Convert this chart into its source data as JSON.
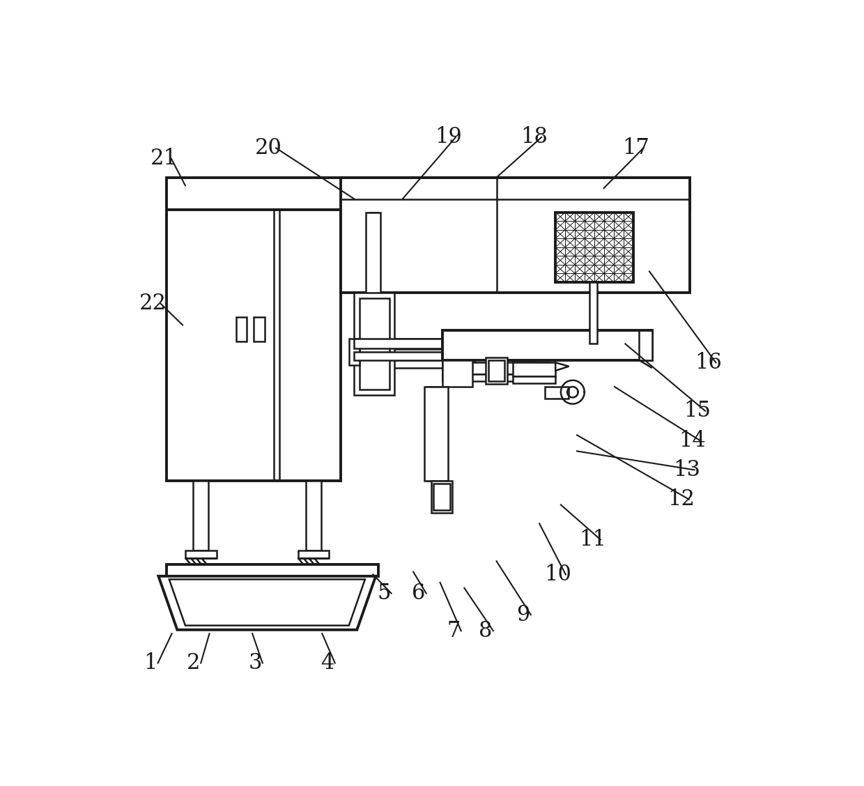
{
  "bg_color": "#ffffff",
  "line_color": "#1a1a1a",
  "lw": 1.8,
  "tlw": 2.8,
  "fs": 22,
  "label_data": [
    [
      "1",
      75,
      1060,
      115,
      1005
    ],
    [
      "2",
      155,
      1060,
      185,
      1005
    ],
    [
      "3",
      270,
      1060,
      265,
      1005
    ],
    [
      "4",
      405,
      1060,
      395,
      1005
    ],
    [
      "5",
      510,
      930,
      490,
      895
    ],
    [
      "6",
      575,
      930,
      565,
      890
    ],
    [
      "7",
      640,
      1000,
      615,
      910
    ],
    [
      "8",
      700,
      1000,
      660,
      920
    ],
    [
      "9",
      770,
      970,
      720,
      870
    ],
    [
      "10",
      835,
      895,
      800,
      800
    ],
    [
      "11",
      900,
      830,
      840,
      765
    ],
    [
      "12",
      1065,
      755,
      870,
      635
    ],
    [
      "13",
      1075,
      700,
      870,
      665
    ],
    [
      "14",
      1085,
      645,
      940,
      545
    ],
    [
      "15",
      1095,
      590,
      960,
      465
    ],
    [
      "16",
      1115,
      500,
      1005,
      330
    ],
    [
      "17",
      980,
      100,
      920,
      175
    ],
    [
      "18",
      790,
      80,
      720,
      155
    ],
    [
      "19",
      630,
      80,
      545,
      195
    ],
    [
      "20",
      295,
      100,
      455,
      195
    ],
    [
      "21",
      100,
      120,
      140,
      170
    ],
    [
      "22",
      80,
      390,
      135,
      430
    ]
  ]
}
